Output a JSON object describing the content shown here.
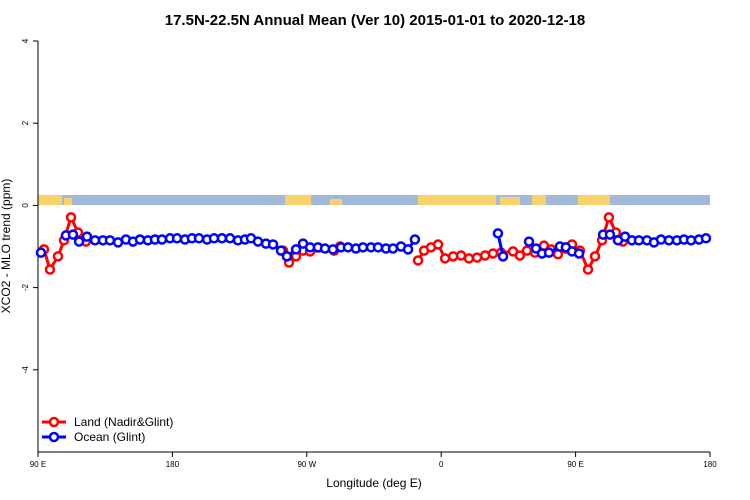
{
  "chart_data": {
    "type": "line",
    "title": "17.5N-22.5N Annual Mean (Ver 10)   2015-01-01 to 2020-12-18",
    "x_label": "Longitude (deg E)",
    "y_label": "XCO2 - MLO trend (ppm)",
    "xlim": [
      90,
      540
    ],
    "xticks": [
      {
        "value": 90,
        "label": "90 E"
      },
      {
        "value": 180,
        "label": "180"
      },
      {
        "value": 270,
        "label": "90 W"
      },
      {
        "value": 360,
        "label": "0"
      },
      {
        "value": 450,
        "label": "90 E"
      },
      {
        "value": 540,
        "label": "180"
      }
    ],
    "ylim": [
      -6,
      4
    ],
    "yticks": [
      -4,
      -2,
      0,
      2,
      4
    ],
    "legend": "bottom-left",
    "series": [
      {
        "name": "Land (Nadir&Glint)",
        "color": "#ff0000",
        "x": [
          94.0,
          98.0,
          103.4,
          107.4,
          112.1,
          116.8,
          122.1,
          null,
          254.1,
          258.1,
          262.8,
          267.5,
          272.2,
          288.3,
          292.3,
          null,
          344.5,
          348.5,
          353.2,
          357.9,
          362.6,
          368.0,
          373.3,
          378.6,
          384.0,
          389.4,
          394.7,
          400.1,
          408.1,
          412.7,
          417.4,
          422.8,
          428.8,
          433.5,
          438.2,
          443.5,
          447.6,
          452.9,
          458.3,
          463.0,
          467.7,
          472.3,
          477.0,
          481.7
        ],
        "values": [
          -1.07,
          -1.56,
          -1.24,
          -0.85,
          -0.29,
          -0.66,
          -0.88,
          null,
          -1.1,
          -1.39,
          -1.24,
          -1.1,
          -1.12,
          -1.1,
          -1.0,
          null,
          -1.34,
          -1.1,
          -1.02,
          -0.95,
          -1.29,
          -1.24,
          -1.22,
          -1.29,
          -1.27,
          -1.22,
          -1.17,
          -1.15,
          -1.12,
          -1.22,
          -1.1,
          -1.15,
          -0.98,
          -1.07,
          -1.19,
          -1.05,
          -0.95,
          -1.1,
          -1.56,
          -1.24,
          -0.85,
          -0.29,
          -0.66,
          -0.88
        ]
      },
      {
        "name": "Ocean (Glint)",
        "color": "#0000ff",
        "x": [
          92.0,
          null,
          108.7,
          113.4,
          117.5,
          122.8,
          128.2,
          133.5,
          138.2,
          143.6,
          148.9,
          153.6,
          158.3,
          163.6,
          168.3,
          173.0,
          178.4,
          183.1,
          188.4,
          193.1,
          197.8,
          203.2,
          207.9,
          213.2,
          218.6,
          223.9,
          228.6,
          232.6,
          237.3,
          242.7,
          247.4,
          252.7,
          256.7,
          262.8,
          267.5,
          272.2,
          277.5,
          282.2,
          287.5,
          292.9,
          297.6,
          302.9,
          307.6,
          313.0,
          317.7,
          323.0,
          327.7,
          333.1,
          337.8,
          342.4,
          null,
          398.0,
          401.4,
          null,
          418.8,
          423.5,
          427.5,
          432.2,
          439.5,
          443.5,
          447.6,
          452.3,
          null,
          468.4,
          473.0,
          478.4,
          483.1,
          487.7,
          492.4,
          497.8,
          502.5,
          507.2,
          512.5,
          517.9,
          522.6,
          527.3,
          532.6,
          537.3
        ],
        "values": [
          -1.15,
          null,
          -0.73,
          -0.71,
          -0.88,
          -0.76,
          -0.85,
          -0.85,
          -0.85,
          -0.9,
          -0.83,
          -0.88,
          -0.83,
          -0.85,
          -0.83,
          -0.83,
          -0.8,
          -0.8,
          -0.83,
          -0.8,
          -0.8,
          -0.83,
          -0.8,
          -0.8,
          -0.8,
          -0.85,
          -0.83,
          -0.8,
          -0.88,
          -0.93,
          -0.95,
          -1.1,
          -1.24,
          -1.07,
          -0.93,
          -1.02,
          -1.02,
          -1.05,
          -1.07,
          -1.02,
          -1.02,
          -1.05,
          -1.02,
          -1.02,
          -1.02,
          -1.05,
          -1.05,
          -1.0,
          -1.07,
          -0.83,
          null,
          -0.68,
          -1.24,
          null,
          -0.88,
          -1.05,
          -1.17,
          -1.15,
          -1.0,
          -1.02,
          -1.12,
          -1.17,
          null,
          -0.71,
          -0.71,
          -0.85,
          -0.76,
          -0.85,
          -0.85,
          -0.85,
          -0.9,
          -0.83,
          -0.85,
          -0.85,
          -0.83,
          -0.85,
          -0.83,
          -0.8
        ]
      }
    ]
  }
}
